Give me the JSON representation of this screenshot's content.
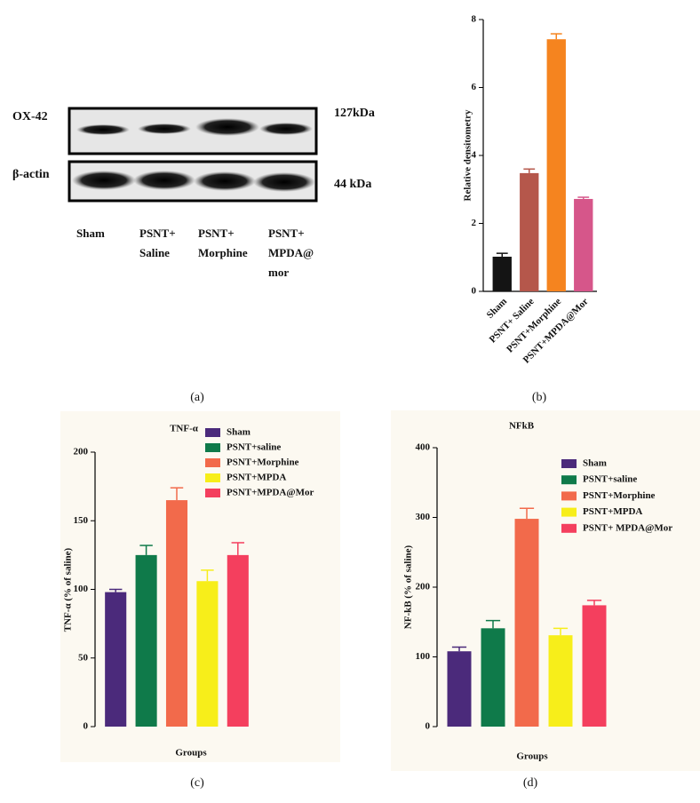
{
  "blot": {
    "panel": "(a)",
    "proteins": [
      {
        "name": "OX-42",
        "size": "127kDa"
      },
      {
        "name": "β-actin",
        "size": "44 kDa"
      }
    ],
    "lanes": [
      [
        "Sham"
      ],
      [
        "PSNT+",
        "Saline"
      ],
      [
        "PSNT+",
        "Morphine"
      ],
      [
        "PSNT+",
        "MPDA@",
        "mor"
      ]
    ]
  },
  "chart_data": [
    {
      "type": "bar",
      "panel": "(b)",
      "y_label": "Relative densitometry",
      "categories": [
        "Sham",
        "PSNT+ Saline",
        "PSNT+Morphine",
        "PSNT+MPDA@Mor"
      ],
      "values": [
        1.02,
        3.48,
        7.42,
        2.72
      ],
      "errors": [
        0.1,
        0.12,
        0.16,
        0.05
      ],
      "colors": [
        "#141414",
        "#b5574b",
        "#f5841f",
        "#d6568a"
      ],
      "ylim": [
        0,
        8
      ],
      "yticks": [
        0,
        2,
        4,
        6,
        8
      ]
    },
    {
      "type": "bar",
      "panel": "(c)",
      "title": "TNF-α",
      "y_label": "TNF-α (% of saline)",
      "x_label": "Groups",
      "series": [
        {
          "name": "Sham",
          "color": "#4b2a7b",
          "values": [
            98
          ],
          "errors": [
            2
          ]
        },
        {
          "name": "PSNT+saline",
          "color": "#0f7a4a",
          "values": [
            125
          ],
          "errors": [
            7
          ]
        },
        {
          "name": "PSNT+Morphine",
          "color": "#f26a4b",
          "values": [
            165
          ],
          "errors": [
            9
          ]
        },
        {
          "name": "PSNT+MPDA",
          "color": "#f7ee1a",
          "values": [
            106
          ],
          "errors": [
            8
          ]
        },
        {
          "name": "PSNT+MPDA@Mor",
          "color": "#f43f5e",
          "values": [
            125
          ],
          "errors": [
            9
          ]
        }
      ],
      "ylim": [
        0,
        200
      ],
      "yticks": [
        0,
        50,
        100,
        150,
        200
      ]
    },
    {
      "type": "bar",
      "panel": "(d)",
      "title": "NFkB",
      "y_label": "NF-kB (% of saline)",
      "x_label": "Groups",
      "series": [
        {
          "name": "Sham",
          "color": "#4b2a7b",
          "values": [
            108
          ],
          "errors": [
            6
          ]
        },
        {
          "name": "PSNT+saline",
          "color": "#0f7a4a",
          "values": [
            141
          ],
          "errors": [
            11
          ]
        },
        {
          "name": "PSNT+Morphine",
          "color": "#f26a4b",
          "values": [
            298
          ],
          "errors": [
            15
          ]
        },
        {
          "name": "PSNT+MPDA",
          "color": "#f7ee1a",
          "values": [
            131
          ],
          "errors": [
            10
          ]
        },
        {
          "name": "PSNT+ MPDA@Mor",
          "color": "#f43f5e",
          "values": [
            174
          ],
          "errors": [
            7
          ]
        }
      ],
      "ylim": [
        0,
        400
      ],
      "yticks": [
        0,
        100,
        200,
        300,
        400
      ]
    }
  ]
}
